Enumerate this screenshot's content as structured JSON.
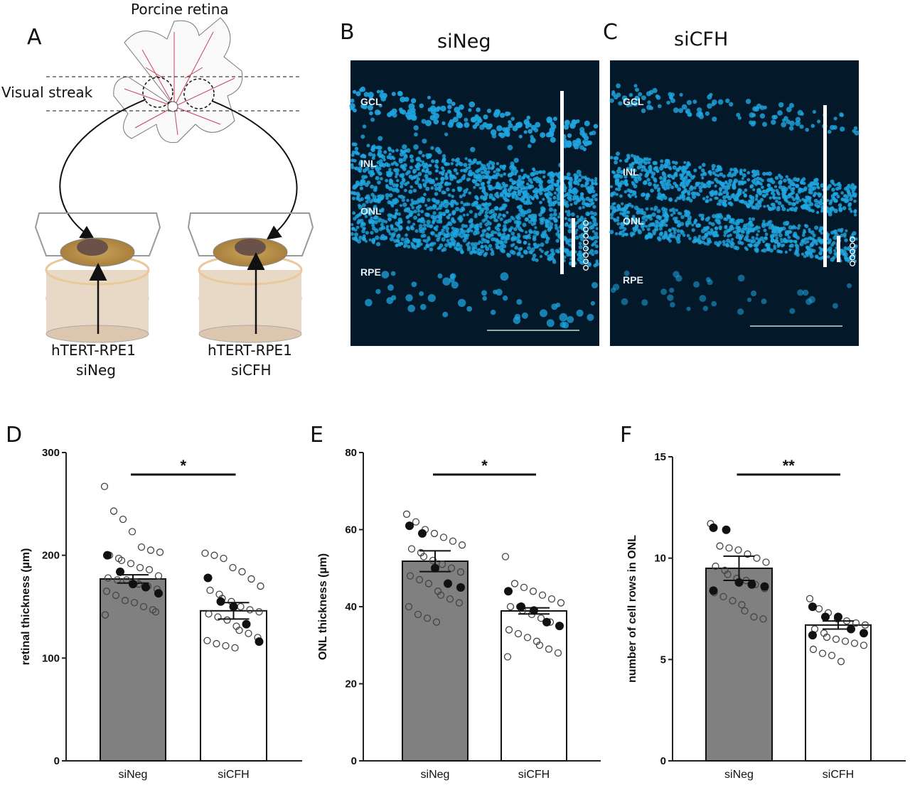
{
  "panel_a": {
    "letter": "A",
    "title": "Porcine retina",
    "visual_streak": "Visual streak",
    "left_cell_line": "hTERT-RPE1",
    "left_condition": "siNeg",
    "right_cell_line": "hTERT-RPE1",
    "right_condition": "siCFH"
  },
  "panel_b": {
    "letter": "B",
    "title": "siNeg",
    "layers": [
      "GCL",
      "INL",
      "ONL",
      "RPE"
    ]
  },
  "panel_c": {
    "letter": "C",
    "title": "siCFH",
    "layers": [
      "GCL",
      "INL",
      "ONL",
      "RPE"
    ]
  },
  "colors": {
    "bar_siNeg": "#808080",
    "bar_siCFH": "#ffffff",
    "nuclei": "#1fa6e0",
    "image_bg": "#03192a"
  },
  "chart_data": [
    {
      "letter": "D",
      "type": "bar",
      "categories": [
        "siNeg",
        "siCFH"
      ],
      "values": [
        177,
        146
      ],
      "sem": [
        4,
        8
      ],
      "ylabel": "retinal thickness (µm)",
      "ylim": [
        0,
        300
      ],
      "yticks": [
        0,
        100,
        200,
        300
      ],
      "significance": "*",
      "points_open": [
        [
          267,
          243,
          235,
          223,
          208,
          205,
          203,
          200,
          197,
          195,
          192,
          188,
          186,
          180,
          178,
          176,
          176,
          174,
          172,
          170,
          167,
          165,
          161,
          156,
          154,
          150,
          147,
          145,
          142
        ],
        [
          202,
          200,
          197,
          188,
          184,
          177,
          170,
          166,
          162,
          158,
          155,
          150,
          147,
          145,
          143,
          140,
          137,
          131,
          127,
          124,
          120,
          117,
          114,
          112,
          110
        ]
      ],
      "points_filled": [
        [
          200,
          184,
          172,
          169,
          163
        ],
        [
          178,
          155,
          150,
          133,
          116
        ]
      ]
    },
    {
      "letter": "E",
      "type": "bar",
      "categories": [
        "siNeg",
        "siCFH"
      ],
      "values": [
        51.8,
        38.9
      ],
      "sem": [
        2.7,
        0.8
      ],
      "ylabel": "ONL thickness (µm)",
      "ylim": [
        0,
        80
      ],
      "yticks": [
        0,
        20,
        40,
        60,
        80
      ],
      "significance": "*",
      "points_open": [
        [
          64,
          62,
          60,
          59,
          58,
          57,
          56,
          55,
          54,
          53,
          52,
          51,
          50,
          49,
          48,
          47,
          46,
          44,
          43,
          42,
          41,
          40,
          38,
          37,
          36
        ],
        [
          53,
          46,
          45,
          44,
          43,
          42,
          41,
          40,
          40,
          39,
          38,
          37,
          36,
          35,
          34,
          33,
          32,
          31,
          30,
          29,
          28,
          27
        ]
      ],
      "points_filled": [
        [
          61,
          59,
          50,
          46,
          45
        ],
        [
          44,
          40,
          39,
          36,
          35
        ]
      ]
    },
    {
      "letter": "F",
      "type": "bar",
      "categories": [
        "siNeg",
        "siCFH"
      ],
      "values": [
        9.5,
        6.7
      ],
      "sem": [
        0.6,
        0.2
      ],
      "ylabel": "number of cell rows in ONL",
      "ylim": [
        0,
        15
      ],
      "yticks": [
        0,
        5,
        10,
        15
      ],
      "significance": "**",
      "points_open": [
        [
          11.7,
          10.6,
          10.5,
          10.4,
          10.2,
          10.0,
          9.8,
          9.6,
          9.4,
          9.2,
          9.0,
          8.9,
          8.7,
          8.5,
          8.3,
          8.1,
          7.9,
          7.7,
          7.4,
          7.1,
          7.0
        ],
        [
          8.0,
          7.5,
          7.3,
          7.0,
          6.9,
          6.8,
          6.7,
          6.5,
          6.3,
          6.1,
          6.0,
          5.9,
          5.8,
          5.7,
          5.5,
          5.3,
          5.2,
          4.9
        ]
      ],
      "points_filled": [
        [
          11.5,
          11.4,
          8.8,
          8.7,
          8.6,
          8.4
        ],
        [
          7.6,
          7.1,
          7.1,
          6.5,
          6.3,
          6.2
        ]
      ]
    }
  ]
}
